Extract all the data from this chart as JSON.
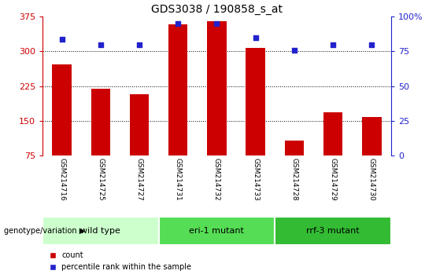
{
  "title": "GDS3038 / 190858_s_at",
  "samples": [
    "GSM214716",
    "GSM214725",
    "GSM214727",
    "GSM214731",
    "GSM214732",
    "GSM214733",
    "GSM214728",
    "GSM214729",
    "GSM214730"
  ],
  "counts": [
    272,
    220,
    208,
    358,
    365,
    308,
    108,
    168,
    158
  ],
  "percentile_ranks": [
    84,
    80,
    80,
    95,
    95,
    85,
    76,
    80,
    80
  ],
  "groups": [
    {
      "label": "wild type",
      "indices": [
        0,
        1,
        2
      ],
      "color": "#ccffcc"
    },
    {
      "label": "eri-1 mutant",
      "indices": [
        3,
        4,
        5
      ],
      "color": "#55dd55"
    },
    {
      "label": "rrf-3 mutant",
      "indices": [
        6,
        7,
        8
      ],
      "color": "#33bb33"
    }
  ],
  "ylim_left": [
    75,
    375
  ],
  "ylim_right": [
    0,
    100
  ],
  "yticks_left": [
    75,
    150,
    225,
    300,
    375
  ],
  "yticks_right": [
    0,
    25,
    50,
    75,
    100
  ],
  "bar_color": "#cc0000",
  "dot_color": "#2222cc",
  "bar_width": 0.5,
  "tick_label_area_color": "#cccccc",
  "background_color": "#ffffff",
  "left_axis_color": "#cc0000",
  "right_axis_color": "#2222cc",
  "group_label": "genotype/variation"
}
